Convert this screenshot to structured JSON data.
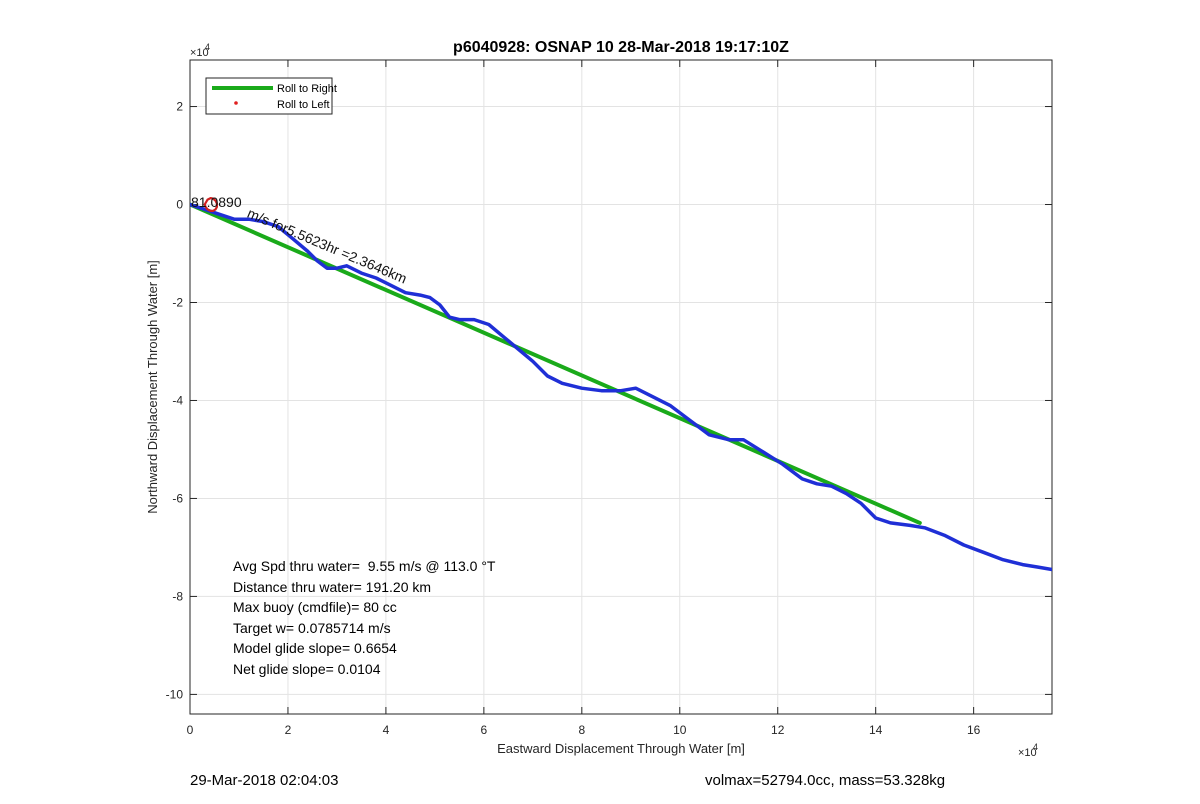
{
  "chart_data": {
    "type": "line",
    "title": "p6040928: OSNAP 10 28-Mar-2018 19:17:10Z",
    "xlabel": "Eastward Displacement Through Water [m]",
    "ylabel": "Northward Displacement Through Water [m]",
    "x_exponent_label": "×10",
    "x_exponent": "4",
    "y_exponent_label": "×10",
    "y_exponent": "4",
    "xlim": [
      0,
      17.6
    ],
    "ylim": [
      -10.4,
      2.95
    ],
    "xticks": [
      0,
      2,
      4,
      6,
      8,
      10,
      12,
      14,
      16
    ],
    "xtick_labels": [
      "0",
      "2",
      "4",
      "6",
      "8",
      "10",
      "12",
      "14",
      "16"
    ],
    "yticks": [
      2,
      0,
      -2,
      -4,
      -6,
      -8,
      -10
    ],
    "ytick_labels": [
      "2",
      "0",
      "-2",
      "-4",
      "-6",
      "-8",
      "-10"
    ],
    "grid": true,
    "legend_position": "top-left",
    "legend": [
      {
        "label": "Roll to Right",
        "color": "#1aaa1a",
        "marker": "line"
      },
      {
        "label": "Roll to Left",
        "color": "#e02020",
        "marker": "dot"
      }
    ],
    "series": [
      {
        "name": "Roll to Right",
        "color": "#1aaa1a",
        "x": [
          0,
          14.9
        ],
        "y": [
          0,
          -6.5
        ]
      },
      {
        "color": "#1f2fd6",
        "x": [
          0,
          0.3,
          0.6,
          0.9,
          1.2,
          1.5,
          1.8,
          2.1,
          2.4,
          2.6,
          2.8,
          3.0,
          3.2,
          3.5,
          3.8,
          4.1,
          4.4,
          4.7,
          4.9,
          5.1,
          5.3,
          5.5,
          5.8,
          6.1,
          6.4,
          6.7,
          7.0,
          7.3,
          7.6,
          8.0,
          8.4,
          8.8,
          9.1,
          9.4,
          9.8,
          10.2,
          10.6,
          11.0,
          11.3,
          11.7,
          12.1,
          12.5,
          12.8,
          13.1,
          13.4,
          13.7,
          14.0,
          14.3,
          14.7,
          15.0,
          15.4,
          15.8,
          16.2,
          16.6,
          17.0,
          17.3,
          17.6
        ],
        "y": [
          0,
          -0.1,
          -0.2,
          -0.3,
          -0.3,
          -0.35,
          -0.45,
          -0.7,
          -0.95,
          -1.15,
          -1.3,
          -1.3,
          -1.25,
          -1.4,
          -1.5,
          -1.65,
          -1.8,
          -1.85,
          -1.9,
          -2.05,
          -2.3,
          -2.35,
          -2.35,
          -2.45,
          -2.7,
          -2.95,
          -3.2,
          -3.5,
          -3.65,
          -3.75,
          -3.8,
          -3.8,
          -3.75,
          -3.9,
          -4.1,
          -4.4,
          -4.7,
          -4.8,
          -4.8,
          -5.05,
          -5.3,
          -5.6,
          -5.7,
          -5.75,
          -5.9,
          -6.1,
          -6.4,
          -6.5,
          -6.55,
          -6.6,
          -6.75,
          -6.95,
          -7.1,
          -7.25,
          -7.35,
          -7.4,
          -7.45
        ]
      },
      {
        "color": "#d02020",
        "x": [
          0.3,
          0.36,
          0.42,
          0.47,
          0.52,
          0.55,
          0.55,
          0.52,
          0.47,
          0.42,
          0.36,
          0.32,
          0.3
        ],
        "y": [
          0.0,
          0.1,
          0.13,
          0.12,
          0.08,
          0.02,
          -0.05,
          -0.1,
          -0.13,
          -0.13,
          -0.1,
          -0.05,
          0.0
        ]
      }
    ],
    "annotations": [
      {
        "text": "81.0890",
        "x": 0.02,
        "y": -0.05,
        "angle": 0
      },
      {
        "text": "m/s for5.5623hr =2.3646km",
        "x": 1.15,
        "y": -0.25,
        "angle": 23
      }
    ],
    "stats": [
      "Avg Spd thru water=  9.55 m/s @ 113.0 °T",
      "Distance thru water= 191.20 km",
      "Max buoy (cmdfile)= 80 cc",
      "Target w= 0.0785714 m/s",
      "Model glide slope= 0.6654",
      "Net glide slope= 0.0104"
    ]
  },
  "footer": {
    "timestamp": "29-Mar-2018 02:04:03",
    "volmax_mass": "volmax=52794.0cc, mass=53.328kg"
  }
}
